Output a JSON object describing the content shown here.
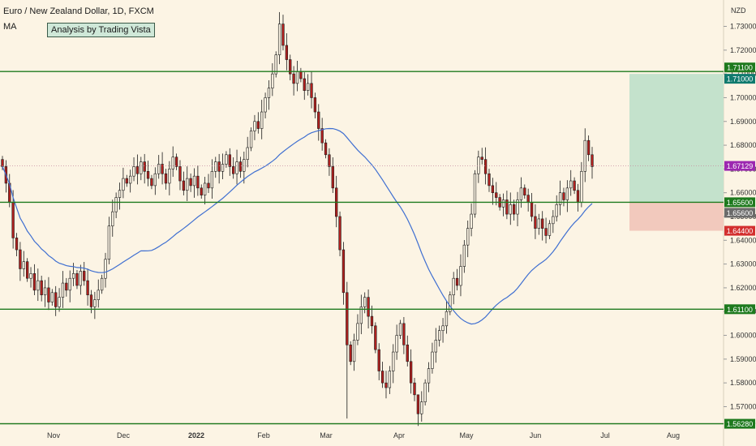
{
  "chart_data": {
    "type": "candlestick",
    "title": "Euro / New Zealand Dollar, 1D, FXCM",
    "indicator": "MA",
    "watermark": "Analysis by Trading Vista",
    "currency": "NZD",
    "ylim": [
      1.563,
      1.737
    ],
    "y_ticks": [
      1.57,
      1.58,
      1.59,
      1.6,
      1.61,
      1.62,
      1.63,
      1.64,
      1.65,
      1.66,
      1.67,
      1.68,
      1.69,
      1.7,
      1.71,
      1.72,
      1.73
    ],
    "y_tick_labels": [
      "1.57000",
      "1.58000",
      "1.59000",
      "1.60000",
      "1.61000",
      "1.62000",
      "1.63000",
      "1.64000",
      "1.65000",
      "1.66000",
      "1.67000",
      "1.68000",
      "1.69000",
      "1.70000",
      "1.71000",
      "1.72000",
      "1.73000"
    ],
    "x_ticks": [
      "Nov",
      "Dec",
      "2022",
      "Feb",
      "Mar",
      "Apr",
      "May",
      "Jun",
      "Jul",
      "Aug"
    ],
    "horizontal_levels": [
      1.711,
      1.656,
      1.611,
      1.5628
    ],
    "price_tags": [
      {
        "label": "1.71100",
        "value": 1.711,
        "color": "#1e7a1e"
      },
      {
        "label": "1.71000",
        "value": 1.71,
        "color": "#0f7a6e"
      },
      {
        "label": "1.67129",
        "value": 1.67129,
        "color": "#9c27b0"
      },
      {
        "label": "1.65600",
        "value": 1.656,
        "color": "#1e7a1e"
      },
      {
        "label": "1.65600",
        "value": 1.656,
        "color": "#6b6b6b",
        "offset": 1
      },
      {
        "label": "1.64400",
        "value": 1.644,
        "color": "#d32f2f"
      },
      {
        "label": "1.61100",
        "value": 1.611,
        "color": "#1e7a1e"
      },
      {
        "label": "1.56280",
        "value": 1.5628,
        "color": "#1e7a1e"
      }
    ],
    "position_box": {
      "entry": 1.656,
      "target": 1.71,
      "stop": 1.644
    },
    "last_price": 1.67129,
    "colors": {
      "up": "#fcf4e4",
      "down": "#b2201e",
      "wick": "#1b1b1b",
      "ma": "#3f6fd1",
      "level": "#1e7a1e",
      "profit": "#c4e2cc",
      "loss": "#f2c9bd"
    },
    "closes": [
      1.671,
      1.664,
      1.656,
      1.641,
      1.636,
      1.628,
      1.631,
      1.624,
      1.626,
      1.619,
      1.623,
      1.617,
      1.62,
      1.614,
      1.618,
      1.612,
      1.616,
      1.622,
      1.619,
      1.624,
      1.626,
      1.621,
      1.627,
      1.623,
      1.617,
      1.612,
      1.615,
      1.619,
      1.624,
      1.632,
      1.646,
      1.652,
      1.658,
      1.661,
      1.666,
      1.664,
      1.667,
      1.671,
      1.668,
      1.673,
      1.669,
      1.666,
      1.663,
      1.668,
      1.672,
      1.668,
      1.664,
      1.67,
      1.675,
      1.671,
      1.665,
      1.661,
      1.666,
      1.663,
      1.667,
      1.662,
      1.659,
      1.664,
      1.662,
      1.669,
      1.673,
      1.669,
      1.672,
      1.676,
      1.671,
      1.668,
      1.673,
      1.669,
      1.674,
      1.679,
      1.686,
      1.69,
      1.687,
      1.694,
      1.7,
      1.704,
      1.71,
      1.718,
      1.731,
      1.722,
      1.716,
      1.71,
      1.706,
      1.711,
      1.708,
      1.703,
      1.706,
      1.7,
      1.694,
      1.687,
      1.681,
      1.676,
      1.671,
      1.662,
      1.65,
      1.636,
      1.618,
      1.596,
      1.589,
      1.598,
      1.605,
      1.612,
      1.616,
      1.608,
      1.604,
      1.594,
      1.585,
      1.58,
      1.578,
      1.585,
      1.593,
      1.6,
      1.605,
      1.596,
      1.589,
      1.58,
      1.575,
      1.567,
      1.572,
      1.58,
      1.586,
      1.593,
      1.598,
      1.602,
      1.604,
      1.61,
      1.617,
      1.624,
      1.621,
      1.629,
      1.638,
      1.645,
      1.651,
      1.668,
      1.675,
      1.674,
      1.668,
      1.663,
      1.66,
      1.658,
      1.654,
      1.657,
      1.651,
      1.655,
      1.651,
      1.657,
      1.662,
      1.659,
      1.656,
      1.65,
      1.645,
      1.649,
      1.645,
      1.642,
      1.647,
      1.65,
      1.655,
      1.66,
      1.657,
      1.662,
      1.665,
      1.661,
      1.656,
      1.669,
      1.682,
      1.676,
      1.671
    ]
  }
}
